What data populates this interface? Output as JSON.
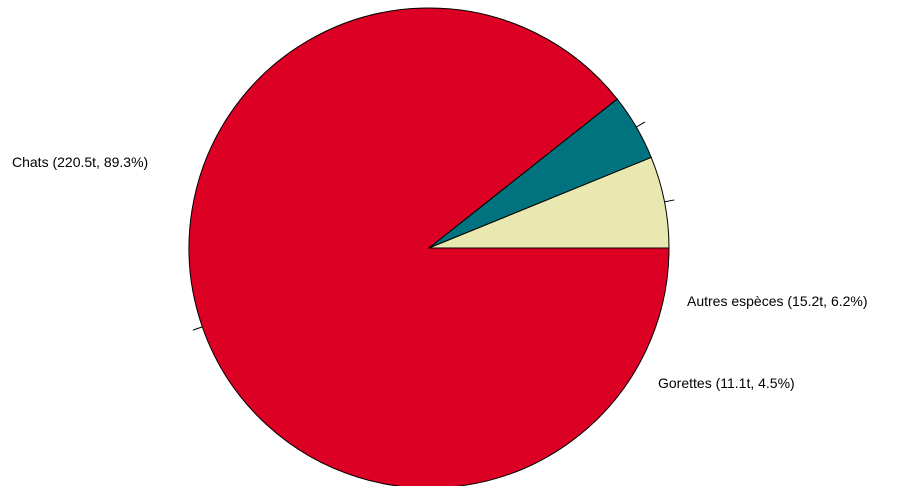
{
  "chart_data": {
    "type": "pie",
    "title": "",
    "slices": [
      {
        "label": "Chats",
        "value": 220.5,
        "percent": 89.3,
        "text": "Chats (220.5t, 89.3%)",
        "color": "#DC0024"
      },
      {
        "label": "Gorettes",
        "value": 11.1,
        "percent": 4.5,
        "text": "Gorettes (11.1t, 4.5%)",
        "color": "#00737F"
      },
      {
        "label": "Autres espèces",
        "value": 15.2,
        "percent": 6.2,
        "text": "Autres espèces (15.2t, 6.2%)",
        "color": "#E8E8B0"
      }
    ],
    "start_angle_deg": 0,
    "direction": "clockwise",
    "stroke_color": "#000000"
  }
}
